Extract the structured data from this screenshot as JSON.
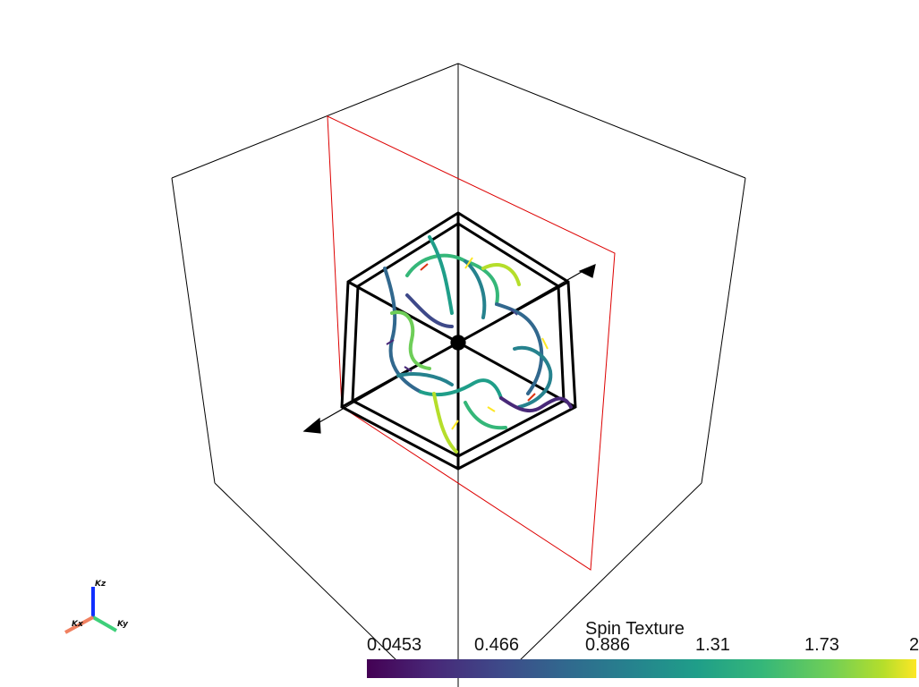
{
  "scene": {
    "axes": {
      "x_label": "Kx",
      "y_label": "Ky",
      "z_label": "Kz"
    },
    "colors": {
      "box_edges": "#000000",
      "plane_outline": "#dd0000",
      "brillouin_zone": "#000000"
    }
  },
  "colorbar": {
    "title": "Spin Texture",
    "ticks": [
      "0.0453",
      "0.466",
      "0.886",
      "1.31",
      "1.73",
      "2"
    ],
    "colormap": "viridis"
  }
}
